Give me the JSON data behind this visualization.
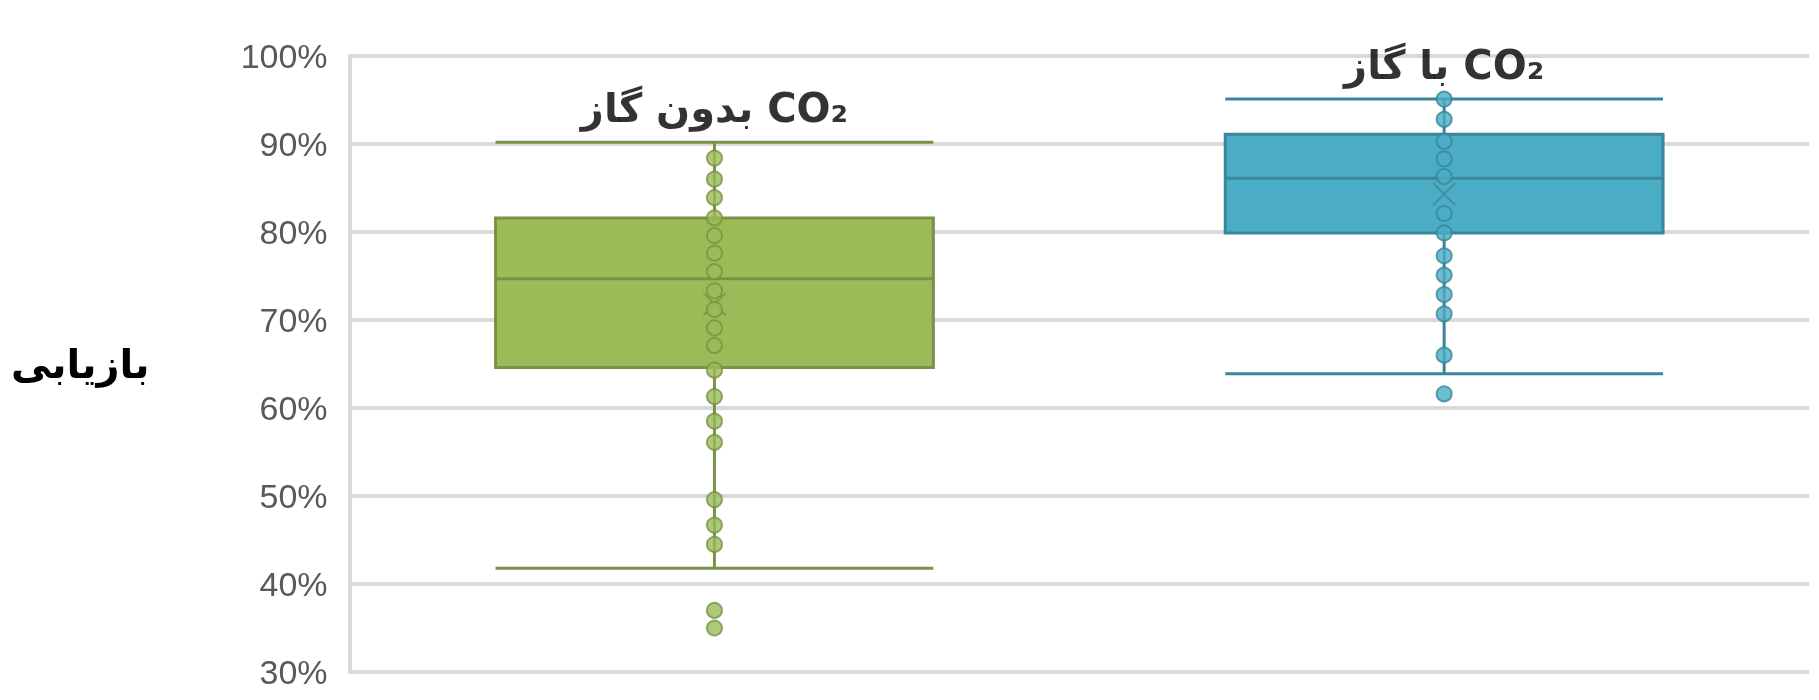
{
  "chart_data": {
    "type": "box",
    "ylabel": "بازیابی",
    "categories": [
      "بدون گاز CO₂",
      "با گاز CO₂"
    ],
    "colors": [
      "#9bbb59",
      "#4bacc6"
    ],
    "boxes": [
      {
        "low": 41.8,
        "q1": 64.6,
        "median": 74.7,
        "q3": 81.6,
        "high": 90.2,
        "mean": 71.8,
        "outliers": [
          37.0,
          35.0
        ]
      },
      {
        "low": 63.9,
        "q1": 79.9,
        "median": 86.1,
        "q3": 91.1,
        "high": 95.1,
        "mean": 84.3,
        "outliers": [
          61.6
        ]
      }
    ],
    "series": [
      {
        "type": "scatter",
        "color": "#9bbb59",
        "x": [
          "بدون گاز CO₂",
          "بدون گاز CO₂",
          "بدون گاز CO₂",
          "بدون گاز CO₂",
          "بدون گاز CO₂",
          "بدون گاز CO₂",
          "بدون گاز CO₂",
          "بدون گاز CO₂",
          "بدون گاز CO₂",
          "بدون گاز CO₂",
          "بدون گاز CO₂",
          "بدون گاز CO₂",
          "بدون گاز CO₂",
          "بدون گاز CO₂",
          "بدون گاز CO₂",
          "بدون گاز CO₂",
          "بدون گاز CO₂",
          "بدون گاز CO₂"
        ],
        "values": [
          88.4,
          86.0,
          83.9,
          81.6,
          79.6,
          77.6,
          75.5,
          73.3,
          71.2,
          69.1,
          67.1,
          64.3,
          61.3,
          58.5,
          56.1,
          49.6,
          46.7,
          44.5
        ]
      },
      {
        "type": "scatter",
        "color": "#4bacc6",
        "x": [
          "با گاز CO₂",
          "با گاز CO₂",
          "با گاز CO₂",
          "با گاز CO₂",
          "با گاز CO₂",
          "با گاز CO₂",
          "با گاز CO₂",
          "با گاز CO₂",
          "با گاز CO₂",
          "با گاز CO₂",
          "با گاز CO₂",
          "با گاز CO₂"
        ],
        "values": [
          95.1,
          92.8,
          90.3,
          88.3,
          86.3,
          82.1,
          79.9,
          77.3,
          75.1,
          72.9,
          70.7,
          66.0
        ]
      }
    ],
    "marker": "circle",
    "ylim": [
      30,
      100
    ],
    "yticks": [
      {
        "value": 30,
        "label": "30%"
      },
      {
        "value": 40,
        "label": "40%"
      },
      {
        "value": 50,
        "label": "50%"
      },
      {
        "value": 60,
        "label": "60%"
      },
      {
        "value": 70,
        "label": "70%"
      },
      {
        "value": 80,
        "label": "80%"
      },
      {
        "value": 90,
        "label": "90%"
      },
      {
        "value": 100,
        "label": "100%"
      }
    ],
    "grid": "y"
  }
}
